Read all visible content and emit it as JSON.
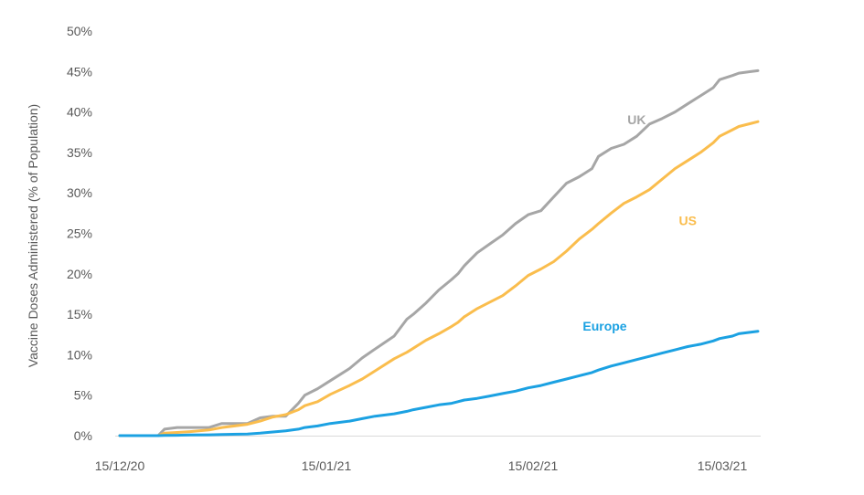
{
  "chart_data": {
    "type": "line",
    "title": "",
    "xlabel": "",
    "ylabel": "Vaccine Doses Administered (% of Population)",
    "y_ticks": [
      "0%",
      "5%",
      "10%",
      "15%",
      "20%",
      "25%",
      "30%",
      "35%",
      "40%",
      "45%",
      "50%"
    ],
    "x_ticks": [
      "15/12/20",
      "15/01/21",
      "15/02/21",
      "15/03/21"
    ],
    "ylim": [
      0,
      50
    ],
    "xlim": [
      0,
      100
    ],
    "grid": false,
    "legend": "direct labels",
    "series": [
      {
        "name": "UK",
        "color": "#A6A6A6",
        "x": [
          0,
          6,
          7,
          9,
          11,
          14,
          16,
          20,
          22,
          24,
          26,
          28,
          29,
          31,
          33,
          36,
          38,
          40,
          43,
          45,
          46,
          48,
          50,
          52,
          53,
          54,
          56,
          58,
          60,
          62,
          64,
          66,
          68,
          70,
          72,
          74,
          75,
          77,
          79,
          81,
          83,
          85,
          87,
          89,
          91,
          93,
          94,
          96,
          97,
          99,
          100
        ],
        "y": [
          0,
          0,
          0.8,
          1.0,
          1.0,
          1.0,
          1.5,
          1.5,
          2.2,
          2.4,
          2.4,
          4.0,
          5.0,
          5.8,
          6.8,
          8.3,
          9.6,
          10.7,
          12.3,
          14.4,
          15.0,
          16.4,
          18.0,
          19.3,
          20.0,
          21.0,
          22.6,
          23.7,
          24.8,
          26.2,
          27.3,
          27.8,
          29.5,
          31.2,
          32.0,
          33.0,
          34.5,
          35.5,
          36.0,
          37.0,
          38.5,
          39.2,
          40.0,
          41.0,
          42.0,
          43.0,
          44.0,
          44.5,
          44.8,
          45.0,
          45.1
        ]
      },
      {
        "name": "US",
        "color": "#FABD4D",
        "x": [
          0,
          6,
          7,
          9,
          11,
          14,
          16,
          20,
          22,
          24,
          26,
          28,
          29,
          31,
          33,
          36,
          38,
          40,
          43,
          45,
          46,
          48,
          50,
          52,
          53,
          54,
          56,
          58,
          60,
          62,
          64,
          66,
          68,
          70,
          72,
          74,
          75,
          77,
          79,
          81,
          83,
          85,
          87,
          89,
          91,
          93,
          94,
          96,
          97,
          99,
          100
        ],
        "y": [
          0,
          0,
          0.3,
          0.4,
          0.5,
          0.7,
          1.0,
          1.4,
          1.8,
          2.3,
          2.6,
          3.2,
          3.7,
          4.2,
          5.1,
          6.2,
          7.0,
          8.0,
          9.5,
          10.3,
          10.8,
          11.8,
          12.6,
          13.5,
          14.0,
          14.7,
          15.7,
          16.5,
          17.3,
          18.5,
          19.8,
          20.6,
          21.5,
          22.8,
          24.3,
          25.5,
          26.2,
          27.5,
          28.7,
          29.5,
          30.4,
          31.7,
          33.0,
          34.0,
          35.0,
          36.2,
          37.0,
          37.8,
          38.2,
          38.6,
          38.8
        ]
      },
      {
        "name": "Europe",
        "color": "#1BA1E2",
        "x": [
          0,
          6,
          7,
          9,
          11,
          14,
          16,
          20,
          22,
          24,
          26,
          28,
          29,
          31,
          33,
          36,
          38,
          40,
          43,
          45,
          46,
          48,
          50,
          52,
          53,
          54,
          56,
          58,
          60,
          62,
          64,
          66,
          68,
          70,
          72,
          74,
          75,
          77,
          79,
          81,
          83,
          85,
          87,
          89,
          91,
          93,
          94,
          96,
          97,
          99,
          100
        ],
        "y": [
          0,
          0,
          0.02,
          0.05,
          0.08,
          0.1,
          0.15,
          0.2,
          0.3,
          0.45,
          0.6,
          0.8,
          1.0,
          1.2,
          1.5,
          1.8,
          2.1,
          2.4,
          2.7,
          3.0,
          3.2,
          3.5,
          3.8,
          4.0,
          4.2,
          4.4,
          4.6,
          4.9,
          5.2,
          5.5,
          5.9,
          6.2,
          6.6,
          7.0,
          7.4,
          7.8,
          8.1,
          8.6,
          9.0,
          9.4,
          9.8,
          10.2,
          10.6,
          11.0,
          11.3,
          11.7,
          12.0,
          12.3,
          12.6,
          12.8,
          12.9
        ]
      }
    ],
    "annotations": [
      {
        "text": "UK",
        "x": 81,
        "y": 38.5
      },
      {
        "text": "US",
        "x": 89,
        "y": 26.0
      },
      {
        "text": "Europe",
        "x": 76,
        "y": 13.0
      }
    ]
  }
}
